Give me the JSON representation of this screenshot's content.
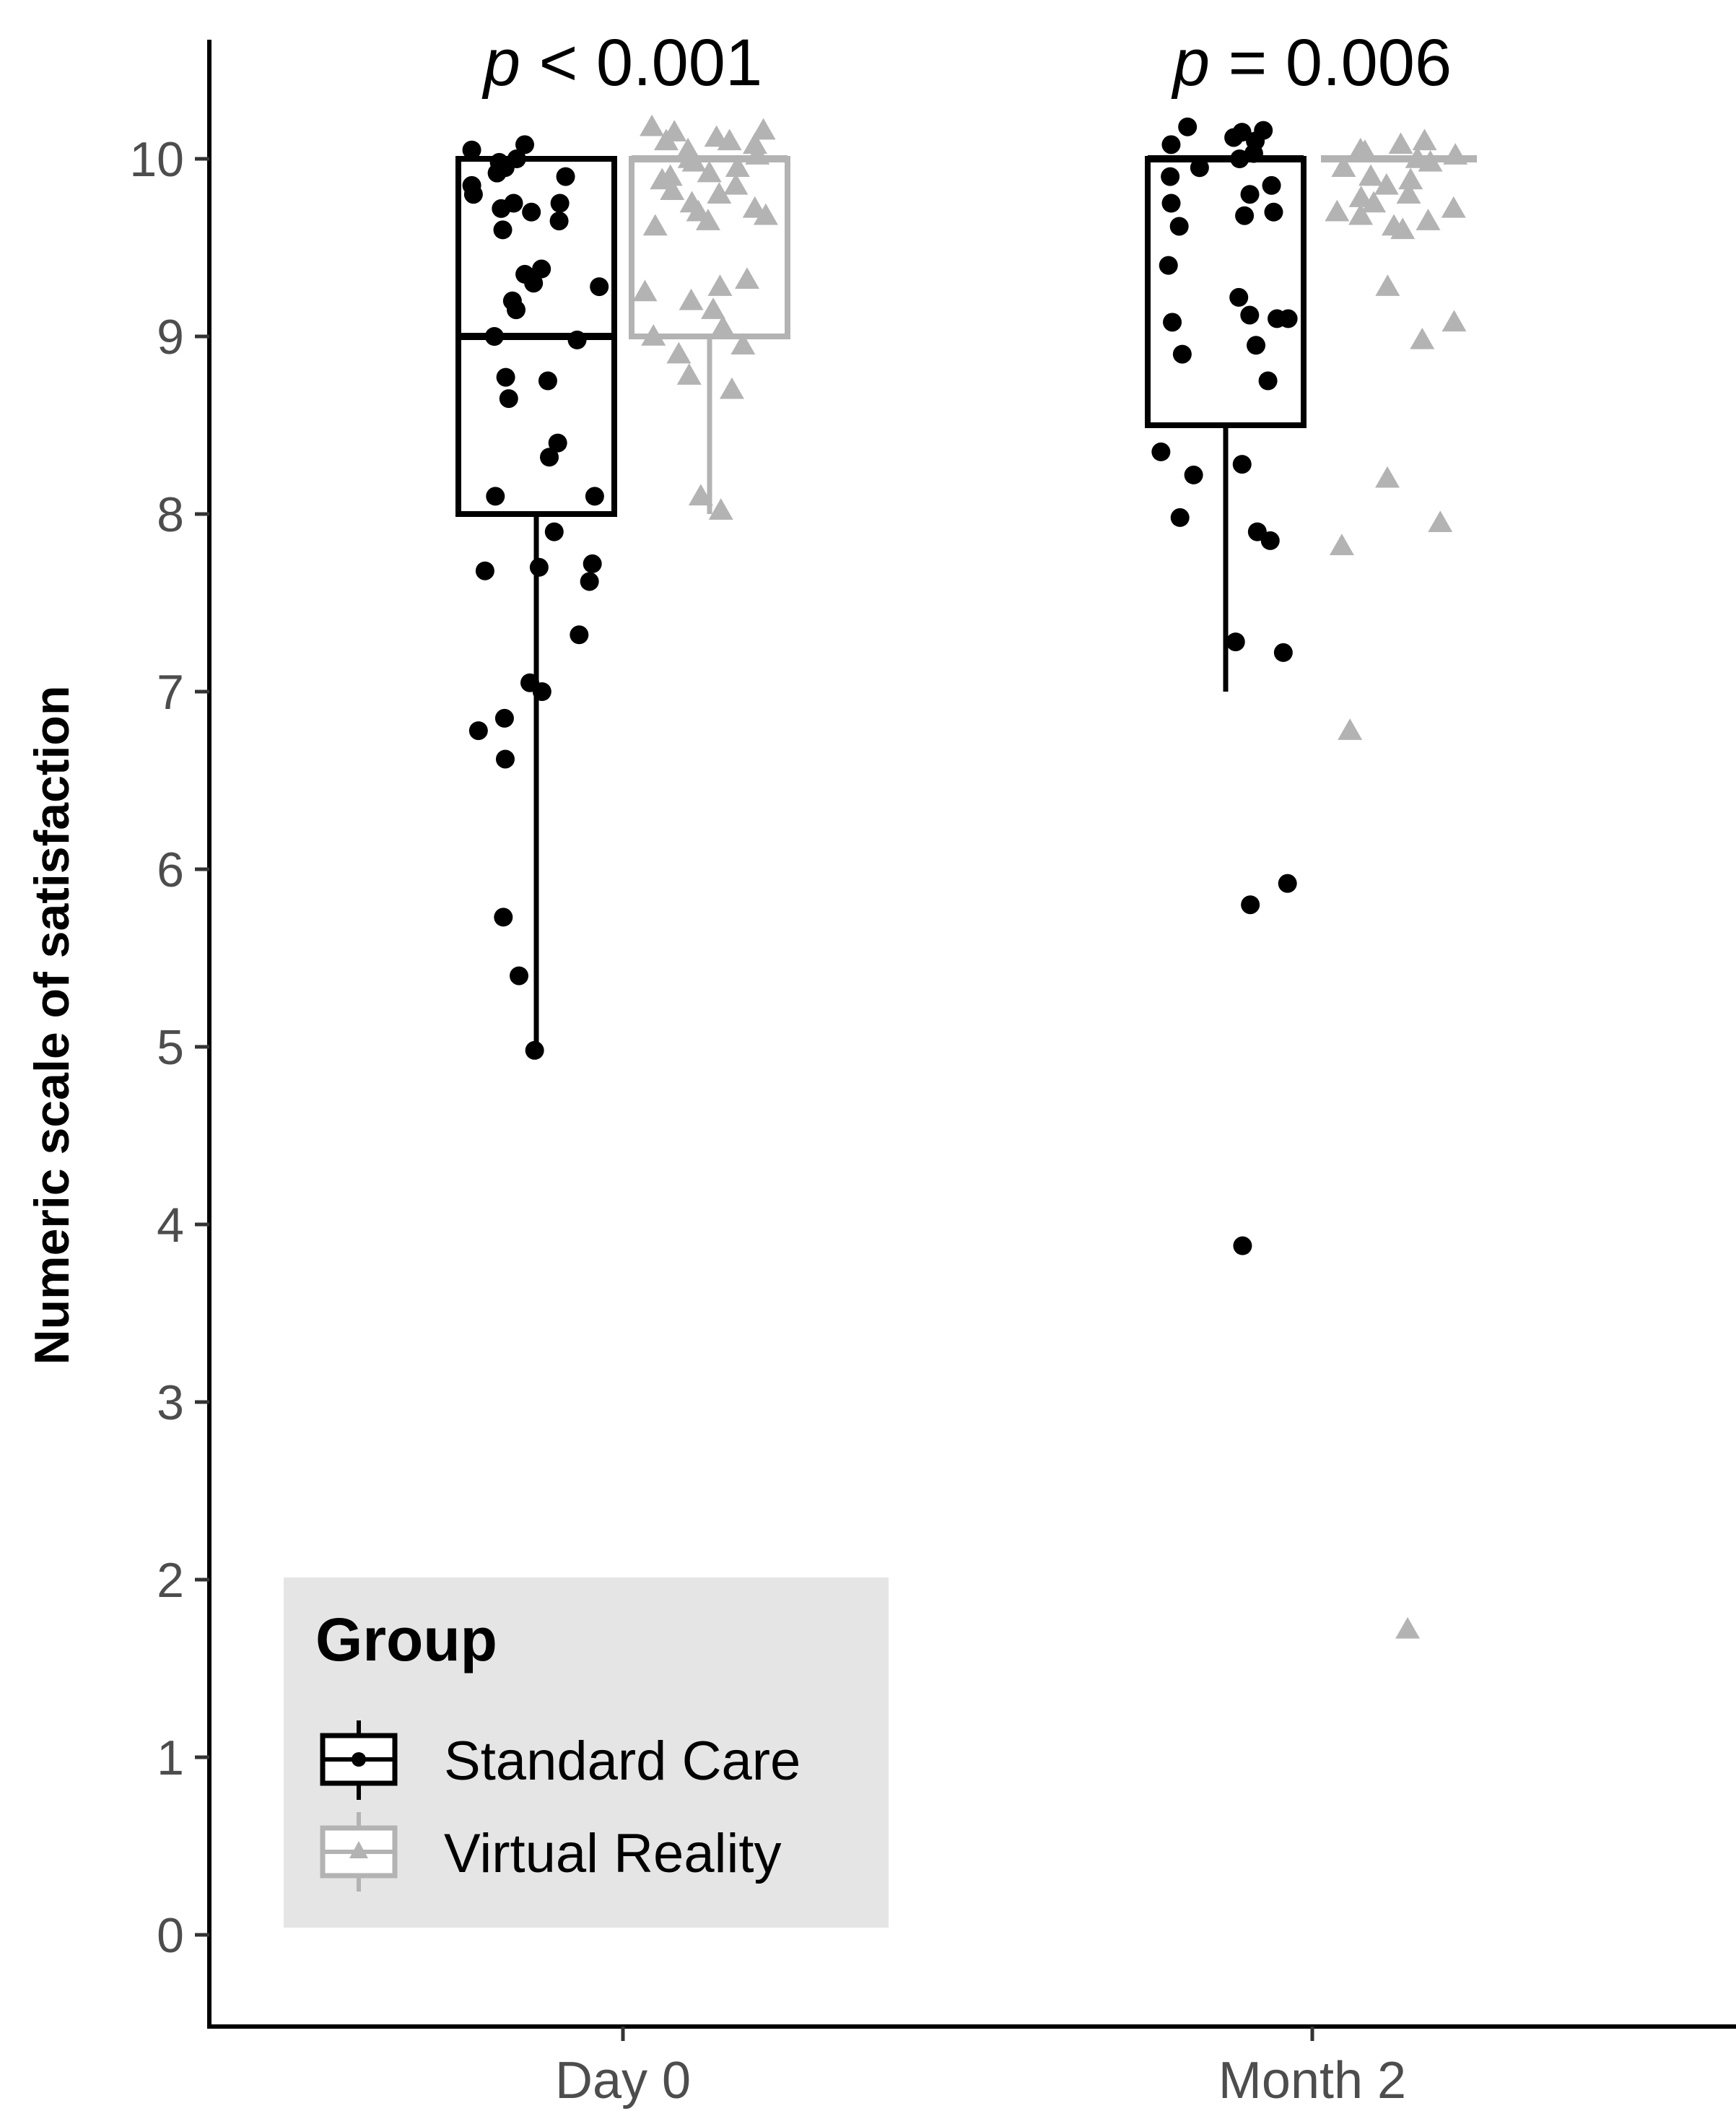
{
  "chart_data": {
    "type": "box",
    "title": "",
    "xlabel": "",
    "ylabel": "Numeric scale of satisfaction",
    "ylim": [
      -0.5,
      10.6
    ],
    "yticks": [
      0,
      1,
      2,
      3,
      4,
      5,
      6,
      7,
      8,
      9,
      10
    ],
    "categories": [
      "Day 0",
      "Month 2"
    ],
    "annotations": [
      {
        "category": "Day 0",
        "p_symbol": "p",
        "p_rest": " < 0.001"
      },
      {
        "category": "Month 2",
        "p_symbol": "p",
        "p_rest": " = 0.006"
      }
    ],
    "legend": {
      "title": "Group",
      "position": "bottom-left",
      "entries": [
        "Standard Care",
        "Virtual Reality"
      ]
    },
    "colors": {
      "standard_care": "#000000",
      "virtual_reality": "#b3b3b3",
      "legend_bg": "#e5e5e5"
    },
    "series": [
      {
        "name": "Standard Care",
        "marker": "circle",
        "boxes": [
          {
            "category": "Day 0",
            "whisker_low": 5,
            "q1": 8,
            "median": 9,
            "q3": 10,
            "whisker_high": 10,
            "points": [
              10.08,
              10.05,
              10.0,
              9.98,
              9.95,
              9.92,
              9.9,
              9.85,
              9.8,
              9.75,
              9.75,
              9.72,
              9.7,
              9.65,
              9.6,
              9.38,
              9.35,
              9.3,
              9.28,
              9.2,
              9.15,
              9.0,
              8.98,
              8.77,
              8.75,
              8.65,
              8.4,
              8.32,
              8.1,
              8.1,
              7.9,
              7.72,
              7.7,
              7.68,
              7.62,
              7.32,
              7.05,
              7.0,
              6.85,
              6.78,
              6.62,
              5.73,
              5.4,
              4.98
            ]
          },
          {
            "category": "Month 2",
            "whisker_low": 7,
            "q1": 8.5,
            "median": 10,
            "q3": 10,
            "whisker_high": 10,
            "points": [
              10.18,
              10.16,
              10.15,
              10.12,
              10.1,
              10.08,
              10.03,
              10.0,
              9.95,
              9.9,
              9.85,
              9.8,
              9.75,
              9.7,
              9.68,
              9.62,
              9.4,
              9.22,
              9.12,
              9.1,
              9.1,
              9.08,
              8.95,
              8.9,
              8.75,
              8.35,
              8.28,
              8.22,
              7.98,
              7.9,
              7.85,
              7.28,
              7.22,
              5.92,
              5.8,
              3.88
            ]
          }
        ]
      },
      {
        "name": "Virtual Reality",
        "marker": "triangle",
        "boxes": [
          {
            "category": "Day 0",
            "whisker_low": 8,
            "q1": 9,
            "median": 10,
            "q3": 10,
            "whisker_high": 10,
            "points": [
              10.18,
              10.16,
              10.15,
              10.12,
              10.1,
              10.1,
              10.08,
              10.05,
              10.02,
              10.0,
              9.98,
              9.95,
              9.92,
              9.9,
              9.88,
              9.85,
              9.82,
              9.8,
              9.75,
              9.72,
              9.7,
              9.68,
              9.65,
              9.62,
              9.32,
              9.28,
              9.25,
              9.2,
              9.15,
              9.05,
              9.0,
              8.95,
              8.9,
              8.78,
              8.7,
              8.1,
              8.02
            ]
          },
          {
            "category": "Month 2",
            "whisker_low": 10,
            "q1": 10,
            "median": 10,
            "q3": 10,
            "whisker_high": 10,
            "points": [
              10.1,
              10.08,
              10.05,
              10.04,
              10.02,
              10.0,
              9.98,
              9.95,
              9.9,
              9.88,
              9.85,
              9.8,
              9.78,
              9.75,
              9.72,
              9.7,
              9.68,
              9.65,
              9.62,
              9.6,
              9.28,
              9.08,
              8.98,
              8.2,
              7.95,
              7.82,
              6.78,
              1.72
            ]
          }
        ]
      }
    ]
  }
}
